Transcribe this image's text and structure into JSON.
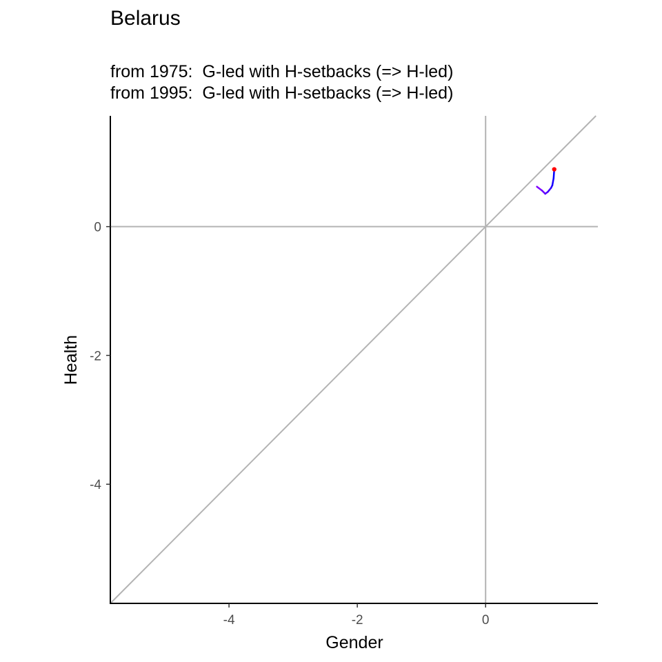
{
  "chart_data": {
    "type": "line",
    "title": "Belarus",
    "subtitle_lines": [
      "from 1975:  G-led with H-setbacks (=> H-led)",
      "from 1995:  G-led with H-setbacks (=> H-led)"
    ],
    "xlabel": "Gender",
    "ylabel": "Health",
    "xlim": [
      -5.85,
      1.75
    ],
    "ylim": [
      -5.85,
      1.72
    ],
    "x_ticks": [
      -4,
      -2,
      0
    ],
    "y_ticks": [
      0,
      -2,
      -4
    ],
    "reference_lines": [
      "x = 0",
      "y = 0",
      "y = x"
    ],
    "grid": false,
    "colors": {
      "reference": "#b3b3b3",
      "trajectory_start": "#7f00ff",
      "trajectory_end": "#0000ff",
      "endpoint": "#ff0000"
    },
    "series": [
      {
        "x": [
          0.8,
          0.88,
          0.93,
          0.97,
          1.02,
          1.04,
          1.06,
          1.07
        ],
        "y": [
          0.62,
          0.56,
          0.51,
          0.54,
          0.6,
          0.64,
          0.75,
          0.89
        ]
      }
    ],
    "endpoint": {
      "x": 1.07,
      "y": 0.89
    }
  }
}
